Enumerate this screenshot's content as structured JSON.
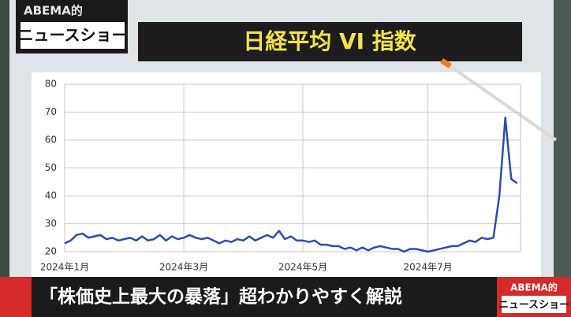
{
  "logo": {
    "brand": "ABEMA的",
    "show": "ニュースショー"
  },
  "caption": "「株価史上最大の暴落」超わかりやすく解説",
  "corner_logo": {
    "brand": "ABEMA的",
    "show": "ニュースショー"
  },
  "chart_data": {
    "type": "line",
    "title": "日経平均 VI 指数",
    "categories": [
      "2024年1月",
      null,
      null,
      null,
      null,
      null,
      null,
      null,
      null,
      null,
      null,
      null,
      null,
      null,
      null,
      null,
      null,
      null,
      null,
      null,
      "2024年3月",
      null,
      null,
      null,
      null,
      null,
      null,
      null,
      null,
      null,
      null,
      null,
      null,
      null,
      null,
      null,
      null,
      null,
      null,
      null,
      "2024年5月",
      null,
      null,
      null,
      null,
      null,
      null,
      null,
      null,
      null,
      null,
      null,
      null,
      null,
      null,
      null,
      null,
      null,
      null,
      null,
      null,
      "2024年7月",
      null,
      null,
      null,
      null,
      null,
      null,
      null,
      null,
      null,
      null,
      null,
      null,
      null,
      null,
      null
    ],
    "series": [
      {
        "name": null,
        "color": "#2a4db3",
        "values": [
          23,
          24,
          26,
          26.5,
          25,
          25.5,
          26,
          24.5,
          25,
          24,
          24.5,
          25,
          24,
          25.5,
          24,
          24.5,
          26,
          24,
          25.5,
          24.5,
          25,
          26,
          25,
          24.5,
          25,
          24,
          23,
          24,
          23.5,
          24.5,
          24,
          25.5,
          24,
          25,
          26,
          25,
          27.5,
          24.5,
          25.5,
          24,
          24,
          23.5,
          24,
          22.5,
          22.5,
          22,
          22,
          21,
          21.5,
          20.5,
          21.5,
          20.5,
          21.5,
          22,
          21.5,
          21,
          21,
          20,
          21,
          21,
          20.5,
          20,
          20.5,
          21,
          21.5,
          22,
          22,
          23,
          24,
          23.5,
          25,
          24.5,
          25,
          40,
          68,
          46,
          44.5
        ]
      }
    ],
    "ylim": [
      20,
      80
    ],
    "yticks": [
      20,
      30,
      40,
      50,
      60,
      70,
      80
    ],
    "grid": true
  }
}
